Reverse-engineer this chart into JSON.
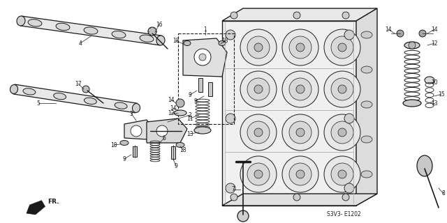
{
  "bg_color": "#ffffff",
  "line_color": "#1a1a1a",
  "diagram_code": "S3V3- E1202",
  "fig_w": 6.4,
  "fig_h": 3.2,
  "dpi": 100
}
